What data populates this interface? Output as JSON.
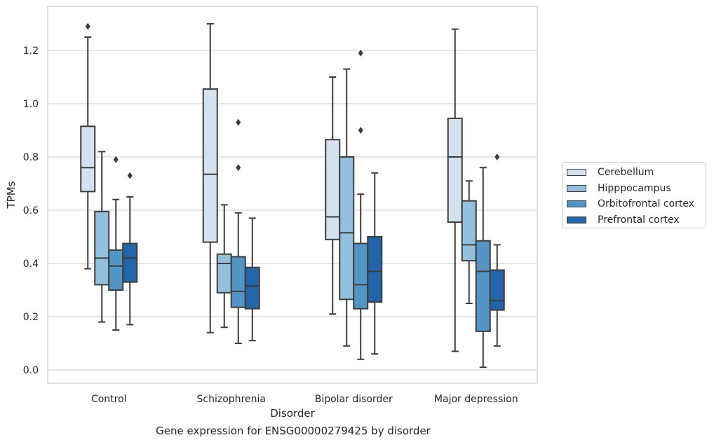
{
  "caption": "Gene expression for ENSG00000279425 by disorder",
  "chart_data": {
    "type": "boxplot",
    "title": "",
    "xlabel": "Disorder",
    "ylabel": "TPMs",
    "ylim": [
      -0.05,
      1.35
    ],
    "yticks": [
      0.0,
      0.2,
      0.4,
      0.6,
      0.8,
      1.0,
      1.2
    ],
    "ytick_labels": [
      "0.0",
      "0.2",
      "0.4",
      "0.6",
      "0.8",
      "1.0",
      "1.2"
    ],
    "grid": "horizontal",
    "legend_position": "right",
    "categories": [
      "Control",
      "Schizophrenia",
      "Bipolar disorder",
      "Major depression"
    ],
    "series": [
      {
        "name": "Cerebellum",
        "color": "#d4e1ef",
        "boxes": [
          {
            "whisker_low": 0.38,
            "q1": 0.67,
            "median": 0.76,
            "q3": 0.915,
            "whisker_high": 1.25,
            "outliers": [
              1.29
            ]
          },
          {
            "whisker_low": 0.14,
            "q1": 0.48,
            "median": 0.735,
            "q3": 1.055,
            "whisker_high": 1.3,
            "outliers": []
          },
          {
            "whisker_low": 0.21,
            "q1": 0.49,
            "median": 0.575,
            "q3": 0.865,
            "whisker_high": 1.1,
            "outliers": []
          },
          {
            "whisker_low": 0.07,
            "q1": 0.555,
            "median": 0.8,
            "q3": 0.945,
            "whisker_high": 1.28,
            "outliers": []
          }
        ]
      },
      {
        "name": "Hipppocampus",
        "color": "#95c0dd",
        "boxes": [
          {
            "whisker_low": 0.18,
            "q1": 0.32,
            "median": 0.42,
            "q3": 0.595,
            "whisker_high": 0.82,
            "outliers": []
          },
          {
            "whisker_low": 0.16,
            "q1": 0.29,
            "median": 0.4,
            "q3": 0.435,
            "whisker_high": 0.62,
            "outliers": []
          },
          {
            "whisker_low": 0.09,
            "q1": 0.265,
            "median": 0.515,
            "q3": 0.8,
            "whisker_high": 1.13,
            "outliers": []
          },
          {
            "whisker_low": 0.25,
            "q1": 0.41,
            "median": 0.47,
            "q3": 0.635,
            "whisker_high": 0.71,
            "outliers": []
          }
        ]
      },
      {
        "name": "Orbitofrontal cortex",
        "color": "#5396c6",
        "boxes": [
          {
            "whisker_low": 0.15,
            "q1": 0.3,
            "median": 0.39,
            "q3": 0.45,
            "whisker_high": 0.64,
            "outliers": [
              0.79
            ]
          },
          {
            "whisker_low": 0.1,
            "q1": 0.235,
            "median": 0.295,
            "q3": 0.425,
            "whisker_high": 0.59,
            "outliers": [
              0.76,
              0.93
            ]
          },
          {
            "whisker_low": 0.04,
            "q1": 0.23,
            "median": 0.32,
            "q3": 0.475,
            "whisker_high": 0.66,
            "outliers": [
              0.9,
              1.19
            ]
          },
          {
            "whisker_low": 0.01,
            "q1": 0.145,
            "median": 0.37,
            "q3": 0.485,
            "whisker_high": 0.76,
            "outliers": []
          }
        ]
      },
      {
        "name": "Prefrontal cortex",
        "color": "#2464a9",
        "boxes": [
          {
            "whisker_low": 0.17,
            "q1": 0.33,
            "median": 0.42,
            "q3": 0.475,
            "whisker_high": 0.65,
            "outliers": [
              0.73
            ]
          },
          {
            "whisker_low": 0.11,
            "q1": 0.23,
            "median": 0.315,
            "q3": 0.385,
            "whisker_high": 0.57,
            "outliers": []
          },
          {
            "whisker_low": 0.06,
            "q1": 0.255,
            "median": 0.37,
            "q3": 0.5,
            "whisker_high": 0.74,
            "outliers": []
          },
          {
            "whisker_low": 0.09,
            "q1": 0.225,
            "median": 0.26,
            "q3": 0.375,
            "whisker_high": 0.47,
            "outliers": [
              0.8
            ]
          }
        ]
      }
    ]
  }
}
